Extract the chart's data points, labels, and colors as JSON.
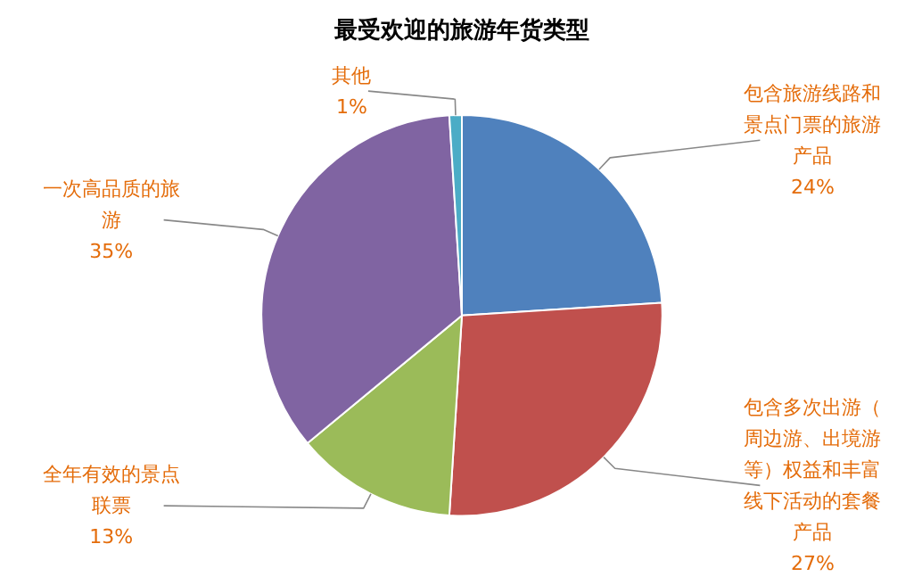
{
  "chart_data": {
    "type": "pie",
    "title": "最受欢迎的旅游年货类型",
    "categories": [
      "包含旅游线路和景点门票的旅游产品",
      "包含多次出游（周边游、出境游等）权益和丰富线下活动的套餐产品",
      "全年有效的景点联票",
      "一次高品质的旅游",
      "其他"
    ],
    "values": [
      24,
      27,
      13,
      35,
      1
    ],
    "value_labels": [
      "24%",
      "27%",
      "13%",
      "35%",
      "1%"
    ],
    "colors": [
      "#4f81bd",
      "#c0504d",
      "#9bbb59",
      "#8064a2",
      "#4bacc6"
    ]
  }
}
